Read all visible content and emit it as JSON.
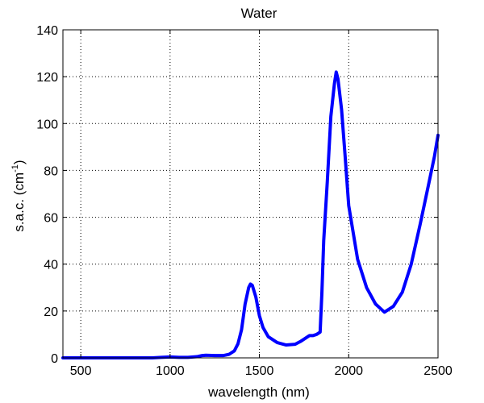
{
  "chart_data": {
    "type": "line",
    "title": "Water",
    "xlabel": "wavelength (nm)",
    "ylabel": {
      "main": "s.a.c. (cm",
      "sup": "-1",
      "close": ")"
    },
    "xlim": [
      400,
      2500
    ],
    "ylim": [
      0,
      140
    ],
    "xticks": [
      500,
      1000,
      1500,
      2000,
      2500
    ],
    "yticks": [
      0,
      20,
      40,
      60,
      80,
      100,
      120,
      140
    ],
    "grid": true,
    "grid_style": "dotted",
    "series": [
      {
        "color": "#0000ff",
        "x": [
          400,
          500,
          600,
          700,
          800,
          900,
          950,
          1000,
          1050,
          1100,
          1150,
          1180,
          1200,
          1250,
          1300,
          1330,
          1360,
          1380,
          1400,
          1420,
          1440,
          1450,
          1460,
          1480,
          1500,
          1520,
          1550,
          1600,
          1650,
          1700,
          1730,
          1760,
          1780,
          1800,
          1820,
          1840,
          1850,
          1860,
          1880,
          1900,
          1920,
          1930,
          1940,
          1960,
          1980,
          2000,
          2050,
          2100,
          2150,
          2200,
          2250,
          2300,
          2350,
          2400,
          2450,
          2480,
          2500
        ],
        "y": [
          0.0,
          0.0,
          0.0,
          0.0,
          0.0,
          0.0,
          0.2,
          0.4,
          0.2,
          0.2,
          0.5,
          1.0,
          1.1,
          1.0,
          1.0,
          1.5,
          3.0,
          6.0,
          12.0,
          23.0,
          30.0,
          31.5,
          31.0,
          26.0,
          18.0,
          13.0,
          9.0,
          6.5,
          5.5,
          5.8,
          7.0,
          8.5,
          9.5,
          9.5,
          10.0,
          11.0,
          28.0,
          50.0,
          75.0,
          103.0,
          117.0,
          122.0,
          119.0,
          106.0,
          86.0,
          65.0,
          42.0,
          30.0,
          23.0,
          19.5,
          22.0,
          28.0,
          40.0,
          57.0,
          75.0,
          86.0,
          95.0
        ]
      }
    ]
  }
}
